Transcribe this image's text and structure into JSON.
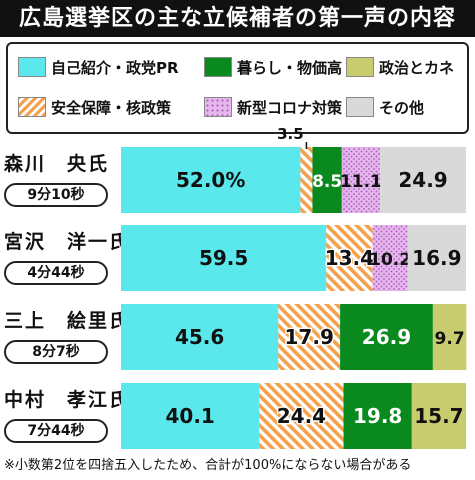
{
  "title": "広島選挙区の主な立候補者の第一声の内容",
  "colors": {
    "self": "#5ae8ec",
    "living": "#0a8a1e",
    "politics": "#c9cc6e",
    "security": "#f5a04a",
    "covid": "#e8b6ef",
    "other": "#d9d9d9"
  },
  "legend": [
    {
      "key": "self",
      "label": "自己紹介・政党PR"
    },
    {
      "key": "living",
      "label": "暮らし・物価高"
    },
    {
      "key": "politics",
      "label": "政治とカネ"
    },
    {
      "key": "security",
      "label": "安全保障・核政策"
    },
    {
      "key": "covid",
      "label": "新型コロナ対策"
    },
    {
      "key": "other",
      "label": "その他"
    }
  ],
  "candidates": [
    {
      "name": "森川　央氏",
      "time": "9分10秒"
    },
    {
      "name": "宮沢　洋一氏",
      "time": "4分44秒"
    },
    {
      "name": "三上　絵里氏",
      "time": "8分7秒"
    },
    {
      "name": "中村　孝江氏",
      "time": "7分44秒"
    }
  ],
  "chart_data": {
    "type": "bar",
    "orientation": "horizontal",
    "stacked": true,
    "categories": [
      "森川　央氏",
      "宮沢　洋一氏",
      "三上　絵里氏",
      "中村　孝江氏"
    ],
    "series": [
      {
        "key": "self",
        "name": "自己紹介・政党PR",
        "values": [
          52.0,
          59.5,
          45.6,
          40.1
        ],
        "labels": [
          "52.0%",
          "59.5",
          "45.6",
          "40.1"
        ]
      },
      {
        "key": "security",
        "name": "安全保障・核政策",
        "values": [
          3.5,
          13.4,
          17.9,
          24.4
        ],
        "labels": [
          "3.5",
          "13.4",
          "17.9",
          "24.4"
        ]
      },
      {
        "key": "living",
        "name": "暮らし・物価高",
        "values": [
          8.5,
          0,
          26.9,
          19.8
        ],
        "labels": [
          "8.5",
          "",
          "26.9",
          "19.8"
        ]
      },
      {
        "key": "covid",
        "name": "新型コロナ対策",
        "values": [
          11.1,
          10.2,
          0,
          0
        ],
        "labels": [
          "11.1",
          "10.2",
          "",
          ""
        ]
      },
      {
        "key": "politics",
        "name": "政治とカネ",
        "values": [
          0,
          0,
          9.7,
          15.7
        ],
        "labels": [
          "",
          "",
          "9.7",
          "15.7"
        ]
      },
      {
        "key": "other",
        "name": "その他",
        "values": [
          24.9,
          16.9,
          0,
          0
        ],
        "labels": [
          "24.9",
          "16.9",
          "",
          ""
        ]
      }
    ],
    "xlim": [
      0,
      100
    ],
    "unit": "%"
  },
  "footnote": "※小数第2位を四捨五入したため、合計が100%にならない場合がある"
}
